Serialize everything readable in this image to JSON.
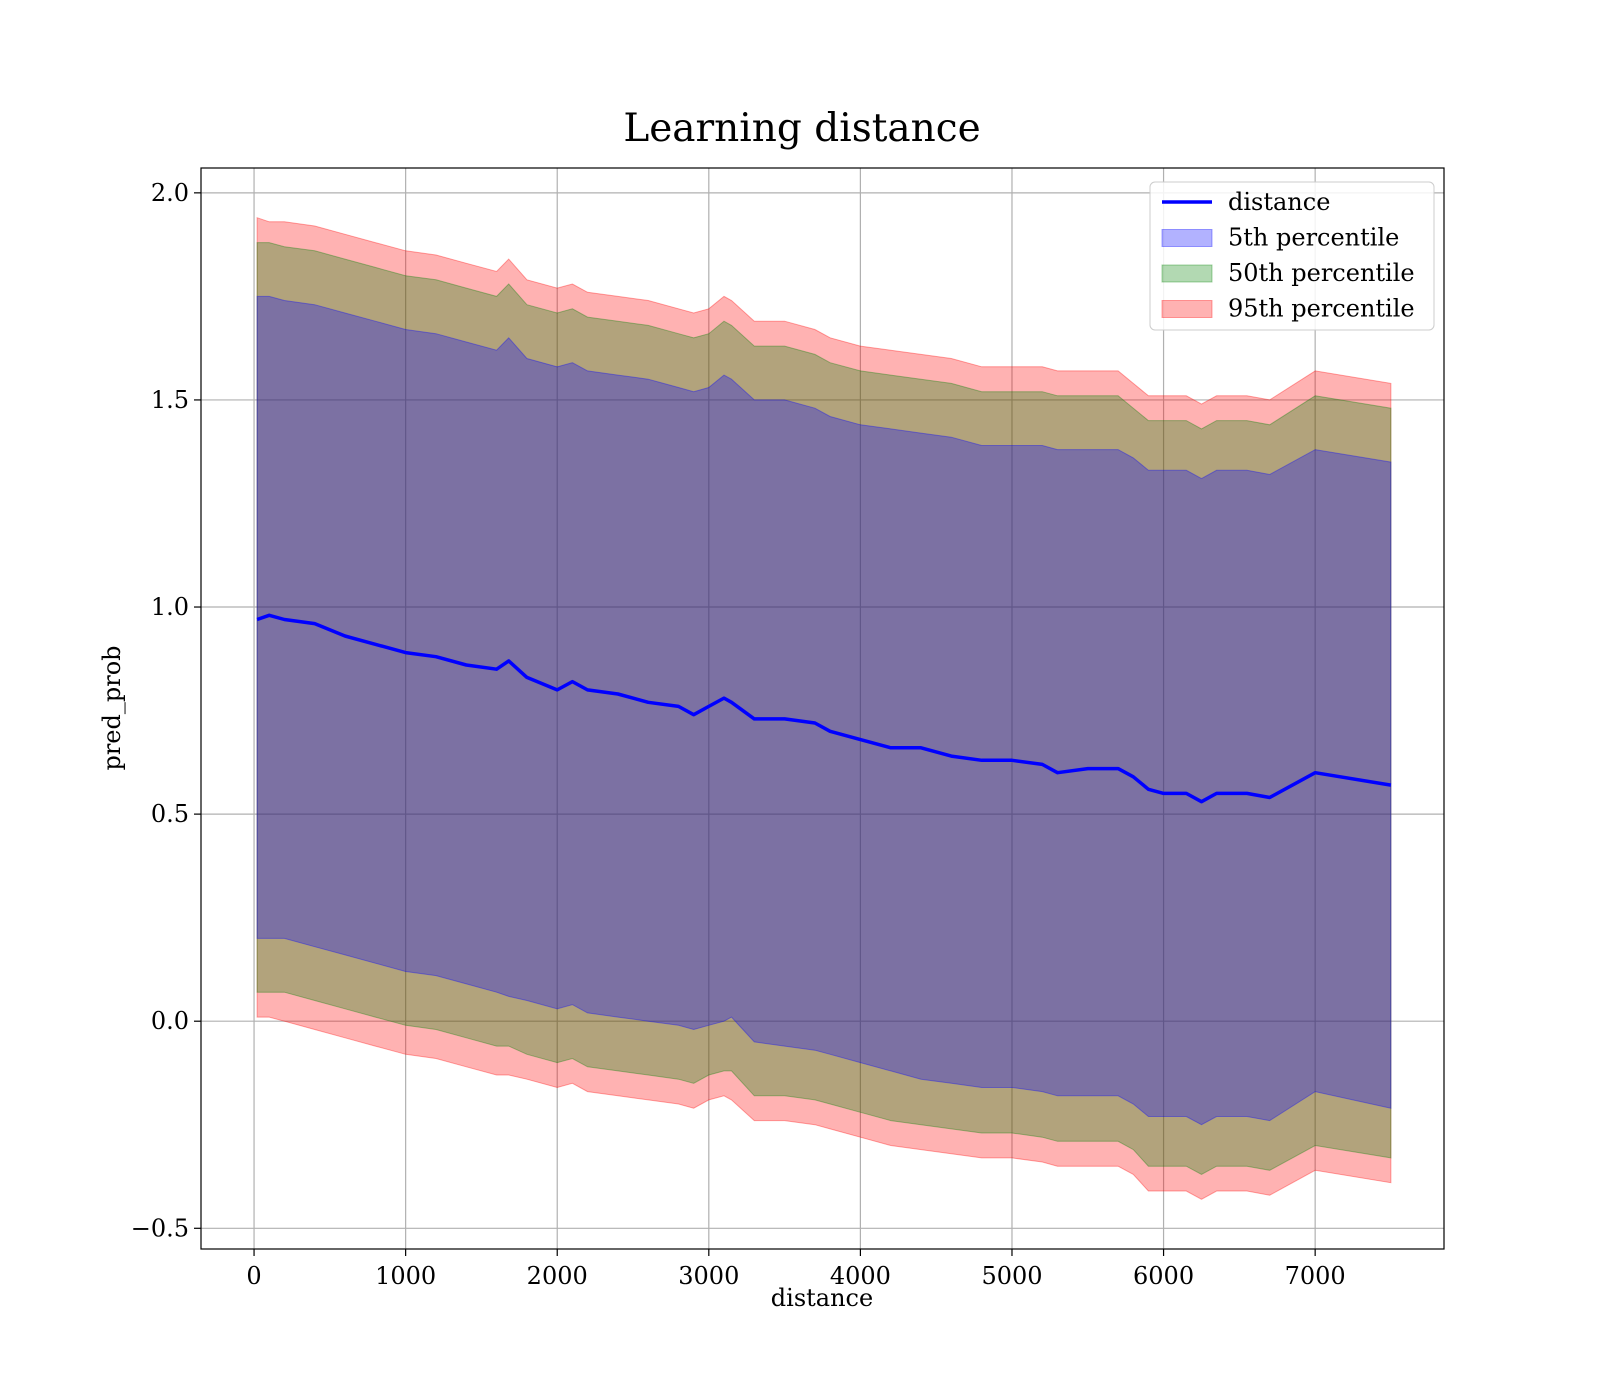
{
  "chart_data": {
    "type": "area",
    "title": "Learning distance",
    "xlabel": "distance",
    "ylabel": "pred_prob",
    "xlim": [
      -350,
      7850
    ],
    "ylim": [
      -0.55,
      2.06
    ],
    "xticks": [
      0,
      1000,
      2000,
      3000,
      4000,
      5000,
      6000,
      7000
    ],
    "xtick_labels": [
      "0",
      "1000",
      "2000",
      "3000",
      "4000",
      "5000",
      "6000",
      "7000"
    ],
    "yticks": [
      -0.5,
      0.0,
      0.5,
      1.0,
      1.5,
      2.0
    ],
    "ytick_labels": [
      "−0.5",
      "0.0",
      "0.5",
      "1.0",
      "1.5",
      "2.0"
    ],
    "grid": true,
    "legend_position": "top-right",
    "x": [
      20,
      100,
      200,
      400,
      600,
      800,
      1000,
      1200,
      1400,
      1600,
      1680,
      1800,
      2000,
      2100,
      2200,
      2400,
      2600,
      2800,
      2900,
      3000,
      3100,
      3150,
      3300,
      3500,
      3700,
      3800,
      4000,
      4200,
      4400,
      4600,
      4800,
      5000,
      5200,
      5300,
      5500,
      5700,
      5800,
      5900,
      6000,
      6150,
      6250,
      6350,
      6550,
      6700,
      7000,
      7500
    ],
    "series": [
      {
        "name": "distance",
        "kind": "line",
        "color": "#0000ff",
        "values": [
          0.97,
          0.98,
          0.97,
          0.96,
          0.93,
          0.91,
          0.89,
          0.88,
          0.86,
          0.85,
          0.87,
          0.83,
          0.8,
          0.82,
          0.8,
          0.79,
          0.77,
          0.76,
          0.74,
          0.76,
          0.78,
          0.77,
          0.73,
          0.73,
          0.72,
          0.7,
          0.68,
          0.66,
          0.66,
          0.64,
          0.63,
          0.63,
          0.62,
          0.6,
          0.61,
          0.61,
          0.59,
          0.56,
          0.55,
          0.55,
          0.53,
          0.55,
          0.55,
          0.54,
          0.6,
          0.57
        ]
      },
      {
        "name": "5th percentile",
        "kind": "band",
        "color": "#0000ff",
        "lower": [
          0.2,
          0.2,
          0.2,
          0.18,
          0.16,
          0.14,
          0.12,
          0.11,
          0.09,
          0.07,
          0.06,
          0.05,
          0.03,
          0.04,
          0.02,
          0.01,
          0.0,
          -0.01,
          -0.02,
          -0.01,
          0.0,
          0.01,
          -0.05,
          -0.06,
          -0.07,
          -0.08,
          -0.1,
          -0.12,
          -0.14,
          -0.15,
          -0.16,
          -0.16,
          -0.17,
          -0.18,
          -0.18,
          -0.18,
          -0.2,
          -0.23,
          -0.23,
          -0.23,
          -0.25,
          -0.23,
          -0.23,
          -0.24,
          -0.17,
          -0.21
        ],
        "upper": [
          1.75,
          1.75,
          1.74,
          1.73,
          1.71,
          1.69,
          1.67,
          1.66,
          1.64,
          1.62,
          1.65,
          1.6,
          1.58,
          1.59,
          1.57,
          1.56,
          1.55,
          1.53,
          1.52,
          1.53,
          1.56,
          1.55,
          1.5,
          1.5,
          1.48,
          1.46,
          1.44,
          1.43,
          1.42,
          1.41,
          1.39,
          1.39,
          1.39,
          1.38,
          1.38,
          1.38,
          1.36,
          1.33,
          1.33,
          1.33,
          1.31,
          1.33,
          1.33,
          1.32,
          1.38,
          1.35
        ]
      },
      {
        "name": "50th percentile",
        "kind": "band",
        "color": "#008000",
        "lower": [
          0.07,
          0.07,
          0.07,
          0.05,
          0.03,
          0.01,
          -0.01,
          -0.02,
          -0.04,
          -0.06,
          -0.06,
          -0.08,
          -0.1,
          -0.09,
          -0.11,
          -0.12,
          -0.13,
          -0.14,
          -0.15,
          -0.13,
          -0.12,
          -0.12,
          -0.18,
          -0.18,
          -0.19,
          -0.2,
          -0.22,
          -0.24,
          -0.25,
          -0.26,
          -0.27,
          -0.27,
          -0.28,
          -0.29,
          -0.29,
          -0.29,
          -0.31,
          -0.35,
          -0.35,
          -0.35,
          -0.37,
          -0.35,
          -0.35,
          -0.36,
          -0.3,
          -0.33
        ],
        "upper": [
          1.88,
          1.88,
          1.87,
          1.86,
          1.84,
          1.82,
          1.8,
          1.79,
          1.77,
          1.75,
          1.78,
          1.73,
          1.71,
          1.72,
          1.7,
          1.69,
          1.68,
          1.66,
          1.65,
          1.66,
          1.69,
          1.68,
          1.63,
          1.63,
          1.61,
          1.59,
          1.57,
          1.56,
          1.55,
          1.54,
          1.52,
          1.52,
          1.52,
          1.51,
          1.51,
          1.51,
          1.48,
          1.45,
          1.45,
          1.45,
          1.43,
          1.45,
          1.45,
          1.44,
          1.51,
          1.48
        ]
      },
      {
        "name": "95th percentile",
        "kind": "band",
        "color": "#ff0000",
        "lower": [
          0.01,
          0.01,
          0.0,
          -0.02,
          -0.04,
          -0.06,
          -0.08,
          -0.09,
          -0.11,
          -0.13,
          -0.13,
          -0.14,
          -0.16,
          -0.15,
          -0.17,
          -0.18,
          -0.19,
          -0.2,
          -0.21,
          -0.19,
          -0.18,
          -0.19,
          -0.24,
          -0.24,
          -0.25,
          -0.26,
          -0.28,
          -0.3,
          -0.31,
          -0.32,
          -0.33,
          -0.33,
          -0.34,
          -0.35,
          -0.35,
          -0.35,
          -0.37,
          -0.41,
          -0.41,
          -0.41,
          -0.43,
          -0.41,
          -0.41,
          -0.42,
          -0.36,
          -0.39
        ],
        "upper": [
          1.94,
          1.93,
          1.93,
          1.92,
          1.9,
          1.88,
          1.86,
          1.85,
          1.83,
          1.81,
          1.84,
          1.79,
          1.77,
          1.78,
          1.76,
          1.75,
          1.74,
          1.72,
          1.71,
          1.72,
          1.75,
          1.74,
          1.69,
          1.69,
          1.67,
          1.65,
          1.63,
          1.62,
          1.61,
          1.6,
          1.58,
          1.58,
          1.58,
          1.57,
          1.57,
          1.57,
          1.54,
          1.51,
          1.51,
          1.51,
          1.49,
          1.51,
          1.51,
          1.5,
          1.57,
          1.54
        ]
      }
    ]
  }
}
